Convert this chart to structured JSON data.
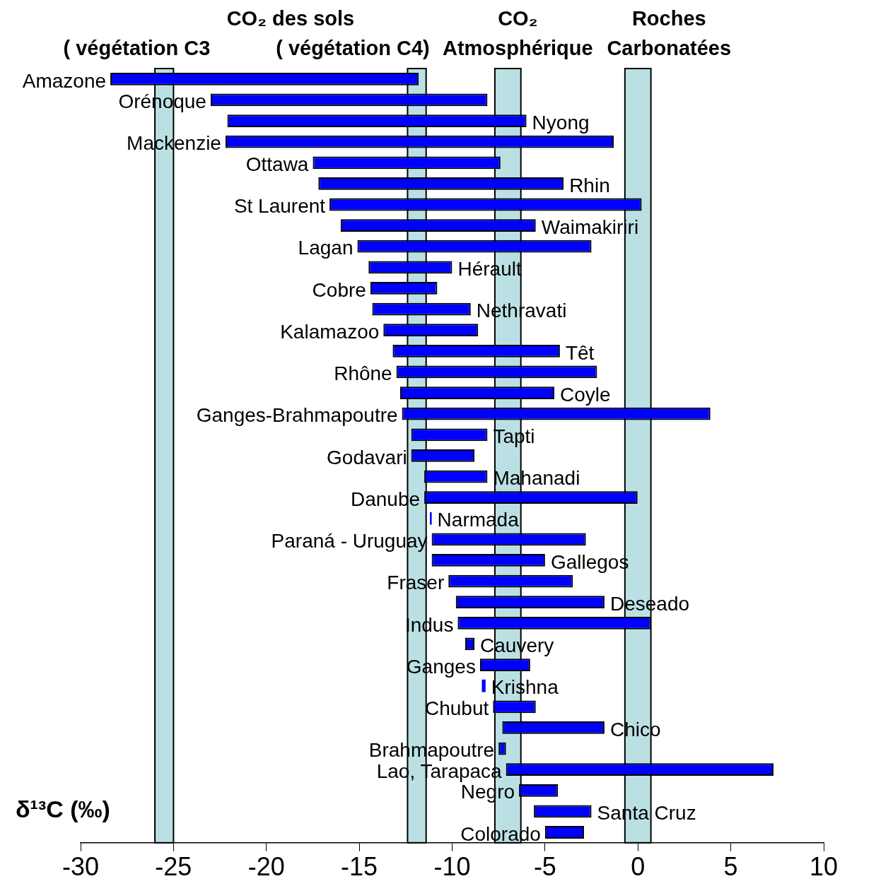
{
  "chart_data": {
    "type": "bar",
    "orientation": "horizontal",
    "xlabel": "δ¹³C (‰)",
    "categories": [
      "Amazone",
      "Orénoque",
      "Nyong",
      "Mackenzie",
      "Ottawa",
      "Rhin",
      "St Laurent",
      "Waimakiriri",
      "Lagan",
      "Hérault",
      "Cobre",
      "Nethravati",
      "Kalamazoo",
      "Têt",
      "Rhône",
      "Coyle",
      "Ganges-Brahmapoutre",
      "Tapti",
      "Godavari",
      "Mahanadi",
      "Danube",
      "Narmada",
      "Paraná - Uruguay",
      "Gallegos",
      "Fraser",
      "Deseado",
      "Indus",
      "Cauvery",
      "Ganges",
      "Krishna",
      "Chubut",
      "Chico",
      "Brahmapoutre",
      "Lao, Tarapaca",
      "Negro",
      "Santa Cruz",
      "Colorado"
    ],
    "base": [
      -28.4,
      -23.0,
      -22.1,
      -22.2,
      -17.5,
      -17.2,
      -16.6,
      -16.0,
      -15.1,
      -14.5,
      -14.4,
      -14.3,
      -13.7,
      -13.2,
      -13.0,
      -12.8,
      -12.7,
      -12.2,
      -12.2,
      -11.5,
      -11.5,
      -11.2,
      -11.1,
      -11.1,
      -10.2,
      -9.8,
      -9.7,
      -9.3,
      -8.5,
      -8.4,
      -7.8,
      -7.3,
      -7.5,
      -7.1,
      -6.4,
      -5.6,
      -5.0
    ],
    "values": [
      16.6,
      14.9,
      16.1,
      20.9,
      10.1,
      13.2,
      16.8,
      10.5,
      12.6,
      4.5,
      3.6,
      5.3,
      5.1,
      9.0,
      10.8,
      8.3,
      16.6,
      4.1,
      3.4,
      3.4,
      11.5,
      0.1,
      8.3,
      6.1,
      6.7,
      8.0,
      10.4,
      0.5,
      2.7,
      0.2,
      2.3,
      5.5,
      0.4,
      14.4,
      2.1,
      3.1,
      2.1
    ],
    "color": "#0000ff",
    "xlim": [
      -30,
      10
    ],
    "xticks": [
      -30,
      -25,
      -20,
      -15,
      -10,
      -5,
      0,
      5,
      10
    ],
    "bands": [
      {
        "axis": "x",
        "from": -26.0,
        "to": -25.0,
        "label": "( végétation C3",
        "color": "#bbe0e3"
      },
      {
        "axis": "x",
        "from": -12.4,
        "to": -11.4,
        "label": "( végétation C4)",
        "color": "#bbe0e3"
      },
      {
        "axis": "x",
        "from": -7.7,
        "to": -6.3,
        "label": "CO₂ Atmosphérique",
        "color": "#bbe0e3"
      },
      {
        "axis": "x",
        "from": -0.7,
        "to": 0.7,
        "label": "Roches Carbonatées",
        "color": "#bbe0e3"
      }
    ],
    "annotations": [
      "CO₂ des sols"
    ],
    "tick_labels": "x",
    "grid": false,
    "legend": false
  }
}
